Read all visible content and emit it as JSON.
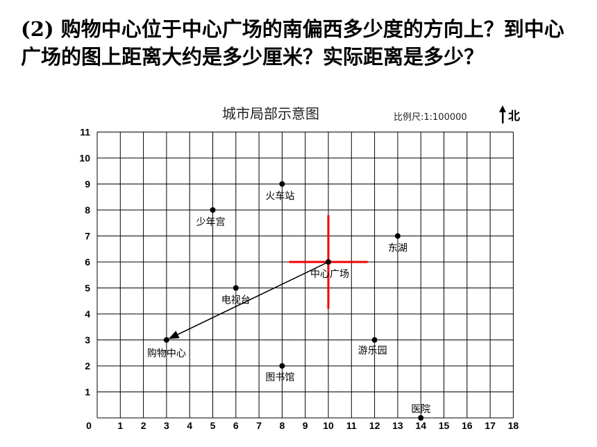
{
  "question": {
    "text": "(2) 购物中心位于中心广场的南偏西多少度的方向上？到中心广场的图上距离大约是多少厘米？实际距离是多少？"
  },
  "map": {
    "title": "城市局部示意图",
    "scale": "比例尺:1:100000",
    "north": "北"
  },
  "grid": {
    "x_max": 18,
    "y_max": 11,
    "x_ticks": [
      "0",
      "1",
      "2",
      "3",
      "4",
      "5",
      "6",
      "7",
      "8",
      "9",
      "10",
      "11",
      "12",
      "13",
      "14",
      "15",
      "16",
      "17",
      "18"
    ],
    "y_ticks": [
      "1",
      "2",
      "3",
      "4",
      "5",
      "6",
      "7",
      "8",
      "9",
      "10",
      "11"
    ]
  },
  "places": [
    {
      "name": "火车站",
      "x": 8,
      "y": 9
    },
    {
      "name": "少年宫",
      "x": 5,
      "y": 8
    },
    {
      "name": "东湖",
      "x": 13,
      "y": 7
    },
    {
      "name": "中心广场",
      "x": 10,
      "y": 6
    },
    {
      "name": "电视台",
      "x": 6,
      "y": 5
    },
    {
      "name": "购物中心",
      "x": 3,
      "y": 3
    },
    {
      "name": "游乐园",
      "x": 12,
      "y": 3
    },
    {
      "name": "图书馆",
      "x": 8,
      "y": 2
    },
    {
      "name": "医院",
      "x": 14,
      "y": 0
    }
  ],
  "arrow": {
    "from": [
      10,
      6
    ],
    "to": [
      3,
      3
    ]
  },
  "cross": {
    "center": [
      10,
      6
    ],
    "half_width": 1.7,
    "half_height": 1.8
  },
  "colors": {
    "cross": "#ee0000",
    "grid": "#000000",
    "arrow": "#000000"
  }
}
